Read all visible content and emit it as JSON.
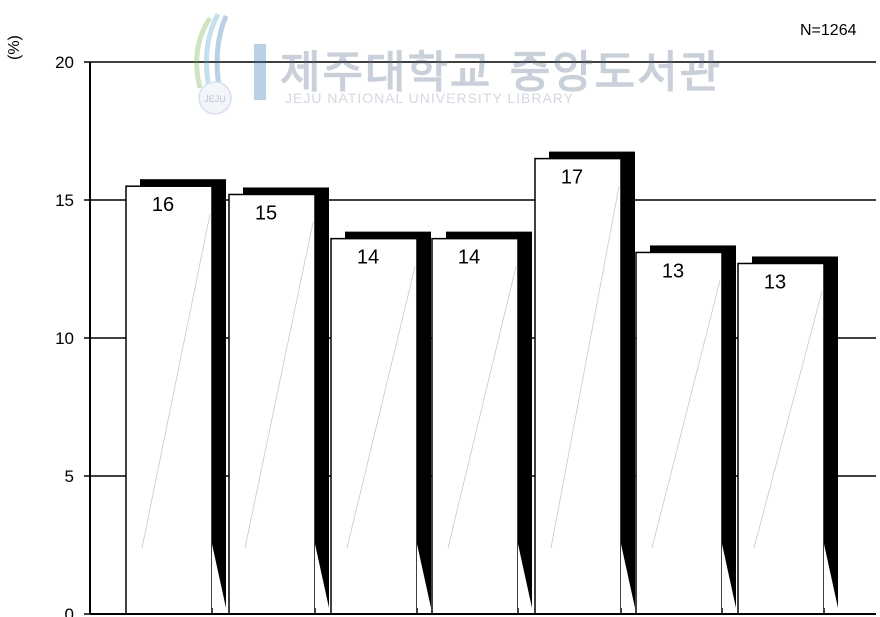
{
  "annotations": {
    "sample_size": "N=1264",
    "y_unit": "(%)"
  },
  "watermark": {
    "title": "제주대학교 중앙도서관",
    "subtitle": "JEJU NATIONAL UNIVERSITY LIBRARY",
    "logo_text": "JEJU"
  },
  "chart_data": {
    "type": "bar",
    "values": [
      15.5,
      15.2,
      13.6,
      13.6,
      16.5,
      13.1,
      12.7
    ],
    "data_labels": [
      "16",
      "15",
      "14",
      "14",
      "17",
      "13",
      "13"
    ],
    "ylim": [
      0,
      20
    ],
    "yticks": [
      "0",
      "5",
      "10",
      "15",
      "20"
    ],
    "grid": true,
    "colors": {
      "bar_face": "#ffffff",
      "bar_shadow": "#000000",
      "grid": "#000000"
    }
  }
}
